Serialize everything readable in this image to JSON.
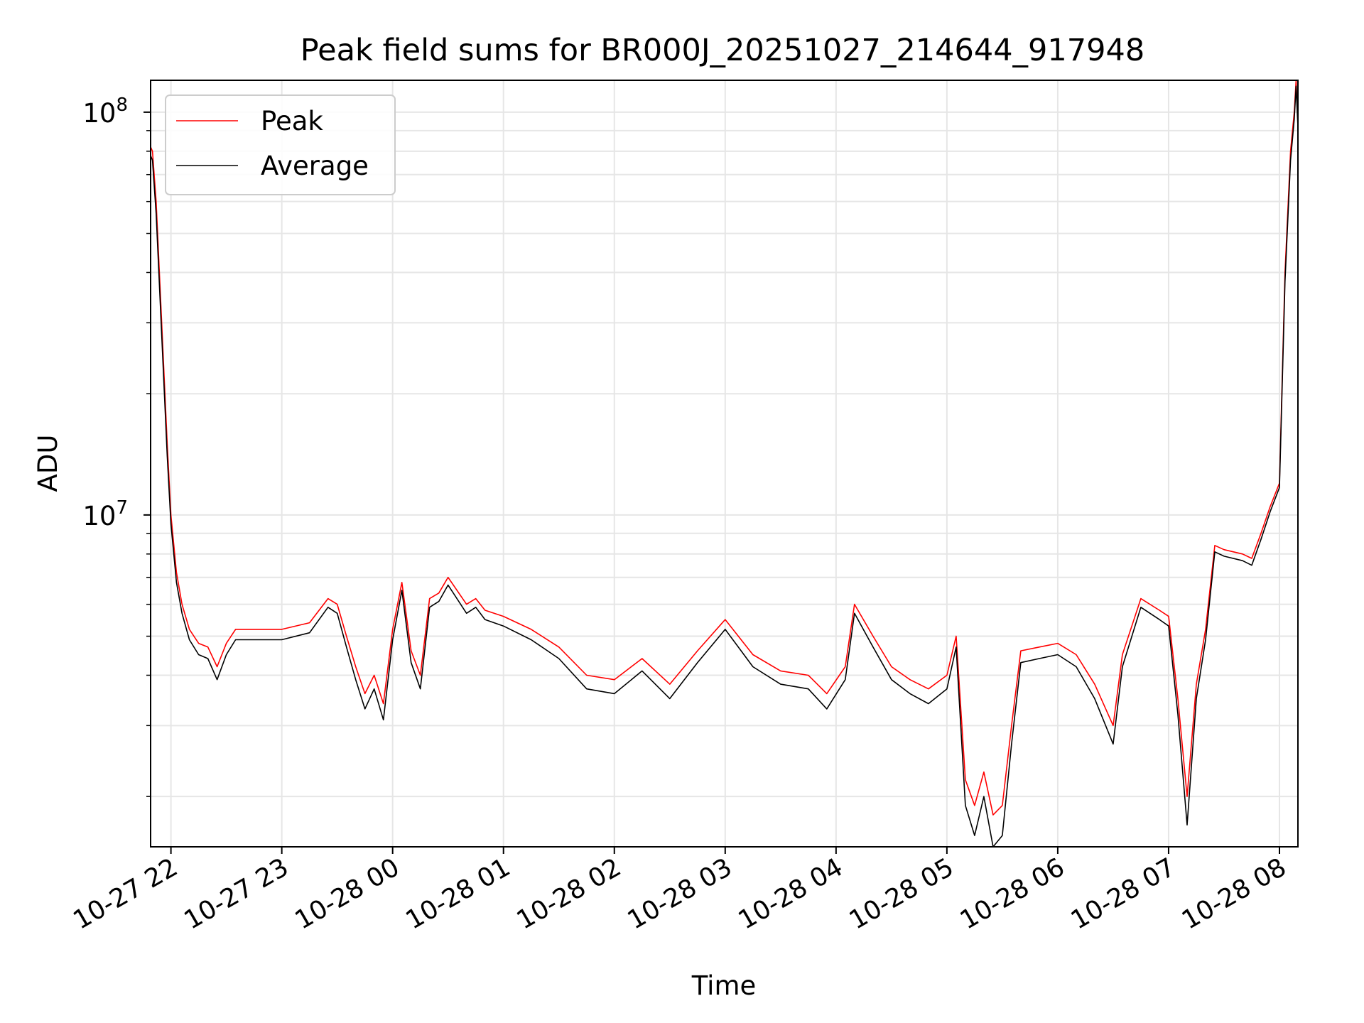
{
  "chart_data": {
    "type": "line",
    "title": "Peak field sums for BR000J_20251027_214644_917948",
    "xlabel": "Time",
    "ylabel": "ADU",
    "y_scale": "log",
    "ylim": [
      1500000,
      120000000
    ],
    "xlim": [
      "2025-10-27 21:49",
      "2025-10-28 08:10"
    ],
    "x_ticks": [
      "10-27 22",
      "10-27 23",
      "10-28 00",
      "10-28 01",
      "10-28 02",
      "10-28 03",
      "10-28 04",
      "10-28 05",
      "10-28 06",
      "10-28 07",
      "10-28 08"
    ],
    "y_tick_labels": [
      {
        "base": "10",
        "exp": "7",
        "value": 10000000
      },
      {
        "base": "10",
        "exp": "8",
        "value": 100000000
      }
    ],
    "grid": true,
    "legend_position": "upper-left",
    "series": [
      {
        "name": "Peak",
        "color": "#ff0000",
        "x": [
          "2025-10-27 21:49",
          "2025-10-27 21:50",
          "2025-10-27 21:52",
          "2025-10-27 21:55",
          "2025-10-27 21:58",
          "2025-10-27 22:00",
          "2025-10-27 22:03",
          "2025-10-27 22:06",
          "2025-10-27 22:10",
          "2025-10-27 22:15",
          "2025-10-27 22:20",
          "2025-10-27 22:25",
          "2025-10-27 22:30",
          "2025-10-27 22:35",
          "2025-10-27 22:45",
          "2025-10-27 23:00",
          "2025-10-27 23:15",
          "2025-10-27 23:25",
          "2025-10-27 23:30",
          "2025-10-27 23:35",
          "2025-10-27 23:40",
          "2025-10-27 23:45",
          "2025-10-27 23:50",
          "2025-10-27 23:55",
          "2025-10-28 00:00",
          "2025-10-28 00:05",
          "2025-10-28 00:10",
          "2025-10-28 00:15",
          "2025-10-28 00:20",
          "2025-10-28 00:25",
          "2025-10-28 00:30",
          "2025-10-28 00:40",
          "2025-10-28 00:45",
          "2025-10-28 00:50",
          "2025-10-28 01:00",
          "2025-10-28 01:15",
          "2025-10-28 01:30",
          "2025-10-28 01:45",
          "2025-10-28 02:00",
          "2025-10-28 02:15",
          "2025-10-28 02:30",
          "2025-10-28 02:45",
          "2025-10-28 03:00",
          "2025-10-28 03:15",
          "2025-10-28 03:30",
          "2025-10-28 03:45",
          "2025-10-28 03:55",
          "2025-10-28 04:05",
          "2025-10-28 04:10",
          "2025-10-28 04:20",
          "2025-10-28 04:30",
          "2025-10-28 04:40",
          "2025-10-28 04:50",
          "2025-10-28 05:00",
          "2025-10-28 05:05",
          "2025-10-28 05:10",
          "2025-10-28 05:15",
          "2025-10-28 05:20",
          "2025-10-28 05:25",
          "2025-10-28 05:30",
          "2025-10-28 05:35",
          "2025-10-28 05:40",
          "2025-10-28 05:50",
          "2025-10-28 06:00",
          "2025-10-28 06:10",
          "2025-10-28 06:20",
          "2025-10-28 06:30",
          "2025-10-28 06:35",
          "2025-10-28 06:45",
          "2025-10-28 06:55",
          "2025-10-28 07:00",
          "2025-10-28 07:05",
          "2025-10-28 07:10",
          "2025-10-28 07:15",
          "2025-10-28 07:20",
          "2025-10-28 07:25",
          "2025-10-28 07:30",
          "2025-10-28 07:40",
          "2025-10-28 07:45",
          "2025-10-28 07:50",
          "2025-10-28 07:55",
          "2025-10-28 08:00",
          "2025-10-28 08:03",
          "2025-10-28 08:06",
          "2025-10-28 08:08",
          "2025-10-28 08:09",
          "2025-10-28 08:10"
        ],
        "y": [
          82000000,
          80000000,
          60000000,
          30000000,
          15000000,
          10000000,
          7200000,
          6000000,
          5200000,
          4800000,
          4700000,
          4200000,
          4800000,
          5200000,
          5200000,
          5200000,
          5400000,
          6200000,
          6000000,
          5000000,
          4200000,
          3600000,
          4000000,
          3400000,
          5200000,
          6800000,
          4600000,
          4000000,
          6200000,
          6400000,
          7000000,
          6000000,
          6200000,
          5800000,
          5600000,
          5200000,
          4700000,
          4000000,
          3900000,
          4400000,
          3800000,
          4600000,
          5500000,
          4500000,
          4100000,
          4000000,
          3600000,
          4200000,
          6000000,
          5000000,
          4200000,
          3900000,
          3700000,
          4000000,
          5000000,
          2200000,
          1900000,
          2300000,
          1800000,
          1900000,
          3000000,
          4600000,
          4700000,
          4800000,
          4500000,
          3800000,
          3000000,
          4500000,
          6200000,
          5800000,
          5600000,
          3500000,
          2000000,
          3800000,
          5200000,
          8400000,
          8200000,
          8000000,
          7800000,
          9000000,
          10500000,
          12000000,
          40000000,
          80000000,
          100000000,
          120000000,
          95000000
        ]
      },
      {
        "name": "Average",
        "color": "#000000",
        "x": [
          "2025-10-27 21:49",
          "2025-10-27 21:50",
          "2025-10-27 21:52",
          "2025-10-27 21:55",
          "2025-10-27 21:58",
          "2025-10-27 22:00",
          "2025-10-27 22:03",
          "2025-10-27 22:06",
          "2025-10-27 22:10",
          "2025-10-27 22:15",
          "2025-10-27 22:20",
          "2025-10-27 22:25",
          "2025-10-27 22:30",
          "2025-10-27 22:35",
          "2025-10-27 22:45",
          "2025-10-27 23:00",
          "2025-10-27 23:15",
          "2025-10-27 23:25",
          "2025-10-27 23:30",
          "2025-10-27 23:35",
          "2025-10-27 23:40",
          "2025-10-27 23:45",
          "2025-10-27 23:50",
          "2025-10-27 23:55",
          "2025-10-28 00:00",
          "2025-10-28 00:05",
          "2025-10-28 00:10",
          "2025-10-28 00:15",
          "2025-10-28 00:20",
          "2025-10-28 00:25",
          "2025-10-28 00:30",
          "2025-10-28 00:40",
          "2025-10-28 00:45",
          "2025-10-28 00:50",
          "2025-10-28 01:00",
          "2025-10-28 01:15",
          "2025-10-28 01:30",
          "2025-10-28 01:45",
          "2025-10-28 02:00",
          "2025-10-28 02:15",
          "2025-10-28 02:30",
          "2025-10-28 02:45",
          "2025-10-28 03:00",
          "2025-10-28 03:15",
          "2025-10-28 03:30",
          "2025-10-28 03:45",
          "2025-10-28 03:55",
          "2025-10-28 04:05",
          "2025-10-28 04:10",
          "2025-10-28 04:20",
          "2025-10-28 04:30",
          "2025-10-28 04:40",
          "2025-10-28 04:50",
          "2025-10-28 05:00",
          "2025-10-28 05:05",
          "2025-10-28 05:10",
          "2025-10-28 05:15",
          "2025-10-28 05:20",
          "2025-10-28 05:25",
          "2025-10-28 05:30",
          "2025-10-28 05:35",
          "2025-10-28 05:40",
          "2025-10-28 05:50",
          "2025-10-28 06:00",
          "2025-10-28 06:10",
          "2025-10-28 06:20",
          "2025-10-28 06:30",
          "2025-10-28 06:35",
          "2025-10-28 06:45",
          "2025-10-28 06:55",
          "2025-10-28 07:00",
          "2025-10-28 07:05",
          "2025-10-28 07:10",
          "2025-10-28 07:15",
          "2025-10-28 07:20",
          "2025-10-28 07:25",
          "2025-10-28 07:30",
          "2025-10-28 07:40",
          "2025-10-28 07:45",
          "2025-10-28 07:50",
          "2025-10-28 07:55",
          "2025-10-28 08:00",
          "2025-10-28 08:03",
          "2025-10-28 08:06",
          "2025-10-28 08:08",
          "2025-10-28 08:09",
          "2025-10-28 08:10"
        ],
        "y": [
          78000000,
          76000000,
          56000000,
          28000000,
          14000000,
          9500000,
          6800000,
          5700000,
          4900000,
          4500000,
          4400000,
          3900000,
          4500000,
          4900000,
          4900000,
          4900000,
          5100000,
          5900000,
          5700000,
          4700000,
          3900000,
          3300000,
          3700000,
          3100000,
          4900000,
          6500000,
          4300000,
          3700000,
          5900000,
          6100000,
          6700000,
          5700000,
          5900000,
          5500000,
          5300000,
          4900000,
          4400000,
          3700000,
          3600000,
          4100000,
          3500000,
          4300000,
          5200000,
          4200000,
          3800000,
          3700000,
          3300000,
          3900000,
          5700000,
          4700000,
          3900000,
          3600000,
          3400000,
          3700000,
          4700000,
          1900000,
          1600000,
          2000000,
          1500000,
          1600000,
          2700000,
          4300000,
          4400000,
          4500000,
          4200000,
          3500000,
          2700000,
          4200000,
          5900000,
          5500000,
          5300000,
          3200000,
          1700000,
          3500000,
          4900000,
          8100000,
          7900000,
          7700000,
          7500000,
          8700000,
          10200000,
          11700000,
          38000000,
          76000000,
          96000000,
          116000000,
          92000000
        ]
      }
    ]
  }
}
